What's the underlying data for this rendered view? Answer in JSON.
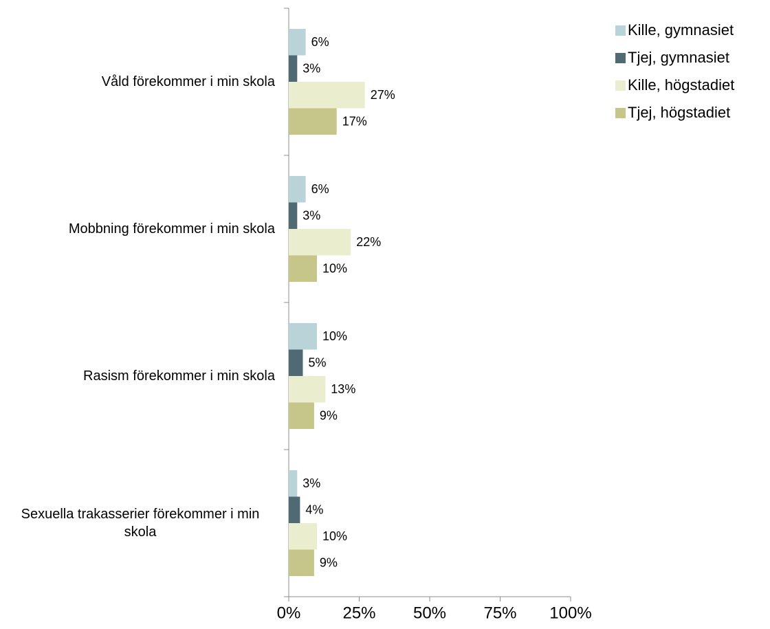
{
  "chart_data": {
    "type": "barh",
    "categories": [
      "Våld förekommer i min skola",
      "Mobbning förekommer i min skola",
      "Rasism förekommer i min skola",
      "Sexuella trakasserier förekommer i min skola"
    ],
    "series": [
      {
        "name": "Kille, gymnasiet",
        "color": "#b9d3d8",
        "values": [
          6,
          6,
          10,
          3
        ],
        "value_labels": [
          "6%",
          "6%",
          "10%",
          "3%"
        ]
      },
      {
        "name": "Tjej, gymnasiet",
        "color": "#506a73",
        "values": [
          3,
          3,
          5,
          4
        ],
        "value_labels": [
          "3%",
          "3%",
          "5%",
          "4%"
        ]
      },
      {
        "name": "Kille, högstadiet",
        "color": "#eaedce",
        "values": [
          27,
          22,
          13,
          10
        ],
        "value_labels": [
          "27%",
          "22%",
          "13%",
          "10%"
        ]
      },
      {
        "name": "Tjej, högstadiet",
        "color": "#c6c58a",
        "values": [
          17,
          10,
          9,
          9
        ],
        "value_labels": [
          "17%",
          "10%",
          "9%",
          "9%"
        ]
      }
    ],
    "xlim": [
      0,
      100
    ],
    "xticks": [
      {
        "value": 0,
        "label": "0%"
      },
      {
        "value": 25,
        "label": "25%"
      },
      {
        "value": 50,
        "label": "50%"
      },
      {
        "value": 75,
        "label": "75%"
      },
      {
        "value": 100,
        "label": "100%"
      }
    ],
    "legend": "top-right"
  }
}
